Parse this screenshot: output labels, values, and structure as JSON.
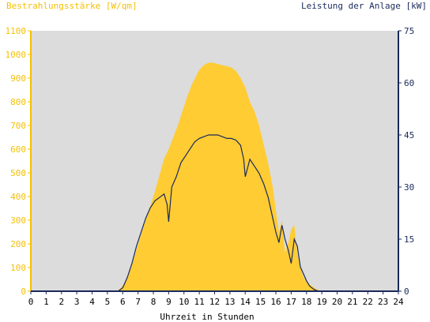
{
  "chart_data": {
    "type": "area",
    "left_axis_label": "Bestrahlungsstärke [W/qm]",
    "right_axis_label": "Leistung der Anlage [kW]",
    "xlabel": "Uhrzeit in Stunden",
    "x_range": [
      0,
      24
    ],
    "x_ticks": [
      "0",
      "1",
      "2",
      "3",
      "4",
      "5",
      "6",
      "7",
      "8",
      "9",
      "10",
      "11",
      "12",
      "13",
      "14",
      "15",
      "16",
      "17",
      "18",
      "19",
      "20",
      "21",
      "22",
      "23",
      "24"
    ],
    "left_ylim": [
      0,
      1100
    ],
    "left_ticks": [
      "0",
      "100",
      "200",
      "300",
      "400",
      "500",
      "600",
      "700",
      "800",
      "900",
      "1000",
      "1100"
    ],
    "right_ylim": [
      0,
      75
    ],
    "right_ticks": [
      "0",
      "15",
      "30",
      "45",
      "60",
      "75"
    ],
    "grid": false,
    "colors": {
      "irradiance": "#ffcc33",
      "power": "#1a2a5c",
      "plot_bg": "#dcdcdc",
      "left_axis": "#f5c000",
      "right_axis": "#1a2a5c"
    },
    "series": [
      {
        "axis": "left",
        "x": [
          0,
          5.5,
          5.8,
          6.0,
          6.3,
          6.6,
          6.9,
          7.2,
          7.5,
          7.8,
          8.1,
          8.4,
          8.7,
          9.0,
          9.3,
          9.6,
          9.9,
          10.2,
          10.5,
          10.8,
          11.0,
          11.3,
          11.6,
          11.9,
          12.2,
          12.5,
          12.8,
          13.1,
          13.4,
          13.7,
          14.0,
          14.3,
          14.6,
          14.9,
          15.2,
          15.5,
          15.8,
          16.0,
          16.2,
          16.4,
          16.6,
          16.8,
          17.0,
          17.2,
          17.4,
          17.6,
          17.8,
          18.0,
          18.2,
          18.4,
          18.6,
          18.8,
          19.0,
          19.2,
          24
        ],
        "values": [
          0,
          0,
          8,
          25,
          55,
          110,
          175,
          240,
          300,
          360,
          420,
          490,
          560,
          600,
          650,
          700,
          760,
          820,
          870,
          910,
          935,
          955,
          965,
          965,
          960,
          955,
          950,
          945,
          930,
          900,
          860,
          800,
          760,
          700,
          620,
          540,
          440,
          340,
          250,
          300,
          160,
          200,
          260,
          280,
          160,
          100,
          60,
          40,
          30,
          20,
          10,
          5,
          0,
          0,
          0
        ]
      },
      {
        "axis": "right",
        "x": [
          0,
          5.7,
          6.0,
          6.3,
          6.6,
          6.9,
          7.2,
          7.5,
          7.8,
          8.1,
          8.4,
          8.7,
          8.9,
          9.0,
          9.2,
          9.5,
          9.8,
          10.1,
          10.4,
          10.7,
          11.0,
          11.3,
          11.6,
          11.9,
          12.2,
          12.5,
          12.8,
          13.1,
          13.4,
          13.7,
          13.9,
          14.0,
          14.3,
          14.6,
          14.9,
          15.2,
          15.5,
          15.8,
          16.0,
          16.2,
          16.4,
          16.6,
          16.8,
          17.0,
          17.2,
          17.4,
          17.6,
          17.8,
          18.0,
          18.2,
          18.5,
          18.8,
          19.0,
          24
        ],
        "values": [
          0,
          0,
          1,
          4,
          8,
          13,
          17,
          21,
          24,
          26,
          27,
          28,
          25,
          20,
          30,
          33,
          37,
          39,
          41,
          43,
          44,
          44.5,
          45,
          45,
          45,
          44.5,
          44,
          44,
          43.5,
          42,
          38,
          33,
          38,
          36,
          34,
          31,
          27,
          21,
          17,
          14,
          19,
          15,
          12,
          8,
          15,
          13,
          7,
          5,
          3,
          1.5,
          0.5,
          0,
          0,
          0
        ]
      }
    ]
  }
}
